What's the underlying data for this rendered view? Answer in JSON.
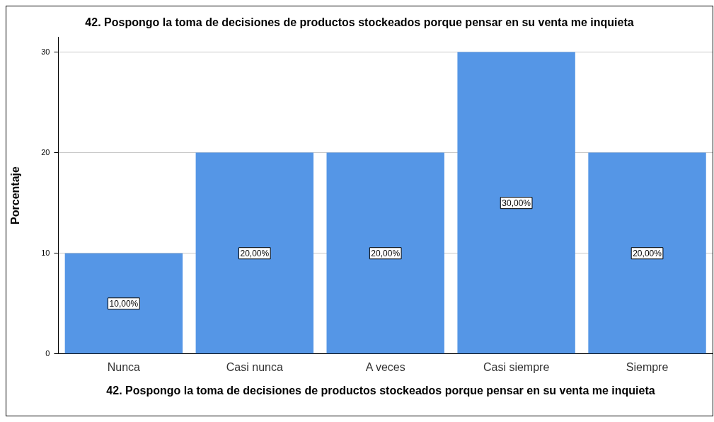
{
  "chart_data": {
    "type": "bar",
    "title": "42. Pospongo la toma de decisiones de productos stockeados porque pensar en su venta me inquieta",
    "xlabel": "42. Pospongo la toma de decisiones de productos stockeados porque pensar en su venta me inquieta",
    "ylabel": "Porcentaje",
    "categories": [
      "Nunca",
      "Casi nunca",
      "A veces",
      "Casi siempre",
      "Siempre"
    ],
    "values": [
      10,
      20,
      20,
      30,
      20
    ],
    "value_labels": [
      "10,00%",
      "20,00%",
      "20,00%",
      "30,00%",
      "20,00%"
    ],
    "color": "#5596e6",
    "ylim": [
      0,
      31.5
    ],
    "yticks": [
      0,
      10,
      20,
      30
    ],
    "grid": "y",
    "legend": false
  }
}
